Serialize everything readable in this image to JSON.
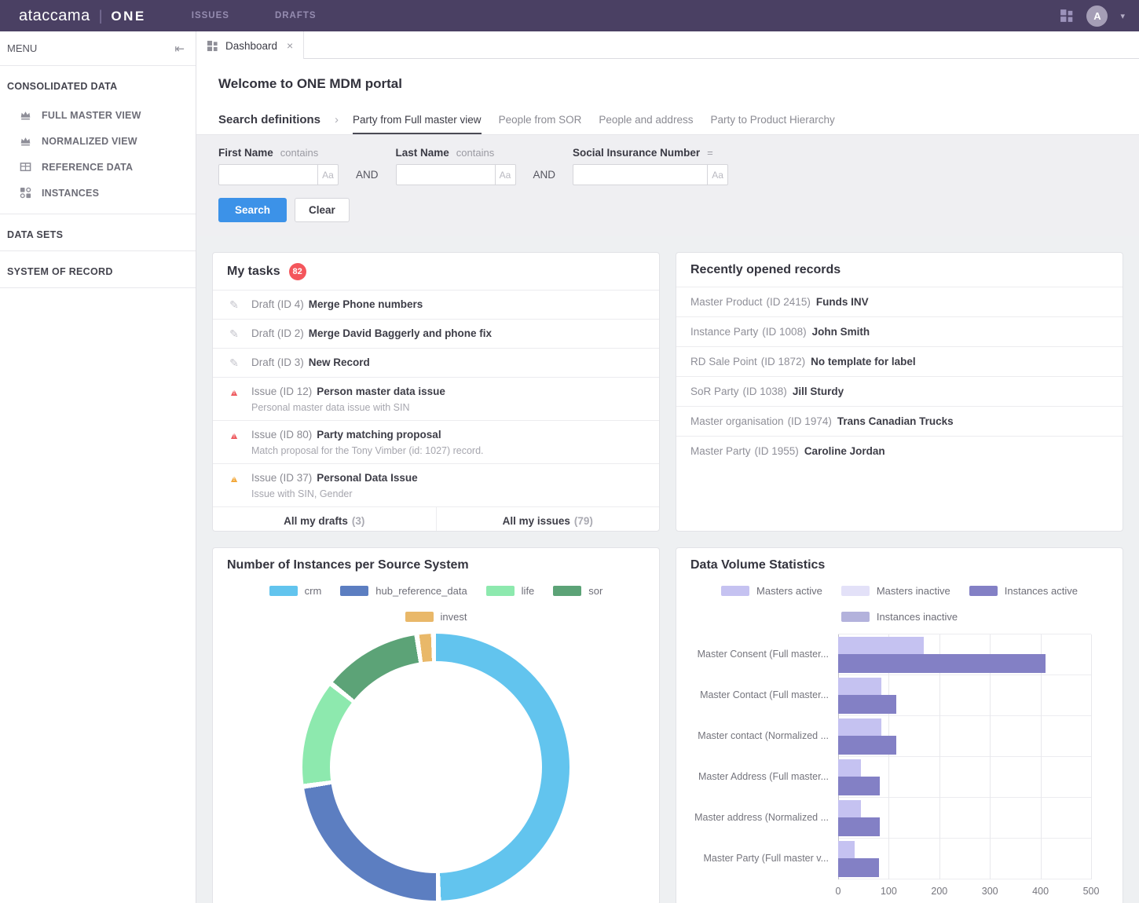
{
  "topbar": {
    "brand": "ataccama",
    "brand_suffix": "ONE",
    "nav": [
      {
        "label": "ISSUES"
      },
      {
        "label": "DRAFTS"
      }
    ],
    "avatar_initial": "A"
  },
  "sidebar": {
    "menu_label": "MENU",
    "sections": [
      {
        "label": "CONSOLIDATED DATA",
        "items": [
          {
            "label": "FULL MASTER VIEW",
            "icon": "crown-icon"
          },
          {
            "label": "NORMALIZED VIEW",
            "icon": "crown-icon"
          },
          {
            "label": "REFERENCE DATA",
            "icon": "table-icon"
          },
          {
            "label": "INSTANCES",
            "icon": "instances-icon"
          }
        ]
      },
      {
        "label": "DATA SETS",
        "items": []
      },
      {
        "label": "SYSTEM OF RECORD",
        "items": []
      }
    ]
  },
  "tabbar": {
    "active_tab": "Dashboard"
  },
  "header": {
    "welcome": "Welcome to ONE MDM portal"
  },
  "search": {
    "title": "Search definitions",
    "tabs": [
      {
        "label": "Party from Full master view",
        "active": true
      },
      {
        "label": "People from SOR",
        "active": false
      },
      {
        "label": "People and address",
        "active": false
      },
      {
        "label": "Party to Product Hierarchy",
        "active": false
      }
    ],
    "connector": "AND",
    "fields": [
      {
        "label": "First Name",
        "operator": "contains",
        "value": "",
        "case_toggle": "Aa"
      },
      {
        "label": "Last Name",
        "operator": "contains",
        "value": "",
        "case_toggle": "Aa"
      },
      {
        "label": "Social Insurance Number",
        "operator": "=",
        "value": "",
        "case_toggle": "Aa"
      }
    ],
    "search_label": "Search",
    "clear_label": "Clear"
  },
  "my_tasks": {
    "title": "My tasks",
    "badge": "82",
    "items": [
      {
        "type": "draft",
        "label": "Draft (ID 4)",
        "title": "Merge Phone numbers",
        "subtitle": ""
      },
      {
        "type": "draft",
        "label": "Draft (ID 2)",
        "title": "Merge David Baggerly and phone fix",
        "subtitle": ""
      },
      {
        "type": "draft",
        "label": "Draft (ID 3)",
        "title": "New Record",
        "subtitle": ""
      },
      {
        "type": "issue-red",
        "label": "Issue (ID 12)",
        "title": "Person master data issue",
        "subtitle": "Personal master data issue with SIN"
      },
      {
        "type": "issue-red",
        "label": "Issue (ID 80)",
        "title": "Party matching proposal",
        "subtitle": "Match proposal for the Tony Vimber (id: 1027) record."
      },
      {
        "type": "issue-orange",
        "label": "Issue (ID 37)",
        "title": "Personal Data Issue",
        "subtitle": "Issue with SIN, Gender"
      }
    ],
    "footer": [
      {
        "label": "All my drafts",
        "count": "(3)"
      },
      {
        "label": "All my issues",
        "count": "(79)"
      }
    ]
  },
  "recent_records": {
    "title": "Recently opened records",
    "items": [
      {
        "label": "Master Product",
        "id": "(ID 2415)",
        "name": "Funds INV"
      },
      {
        "label": "Instance Party",
        "id": "(ID 1008)",
        "name": "John Smith"
      },
      {
        "label": "RD Sale Point",
        "id": "(ID 1872)",
        "name": "No template for label"
      },
      {
        "label": "SoR Party",
        "id": "(ID 1038)",
        "name": "Jill Sturdy"
      },
      {
        "label": "Master organisation",
        "id": "(ID 1974)",
        "name": "Trans Canadian Trucks"
      },
      {
        "label": "Master Party",
        "id": "(ID 1955)",
        "name": "Caroline Jordan"
      }
    ]
  },
  "chart_data": [
    {
      "type": "pie",
      "donut": true,
      "title": "Number of Instances per Source System",
      "unit": "% (estimated from arc angles)",
      "legend_position": "top",
      "legend_break_after": 4,
      "series": [
        {
          "name": "crm",
          "value": 50,
          "color": "#62c4ee"
        },
        {
          "name": "hub_reference_data",
          "value": 23,
          "color": "#5c7ec1"
        },
        {
          "name": "life",
          "value": 13,
          "color": "#8de9ae"
        },
        {
          "name": "sor",
          "value": 12,
          "color": "#5ca377"
        },
        {
          "name": "invest",
          "value": 2,
          "color": "#e9b869"
        }
      ]
    },
    {
      "type": "bar",
      "orientation": "horizontal",
      "title": "Data Volume Statistics",
      "legend_position": "top",
      "legend_break_after": 3,
      "categories": [
        "Master Consent (Full master...",
        "Master Contact (Full master...",
        "Master contact (Normalized ...",
        "Master Address (Full master...",
        "Master address (Normalized ...",
        "Master Party (Full master v..."
      ],
      "series": [
        {
          "name": "Masters active",
          "color": "#c5c2f1",
          "values": [
            170,
            85,
            85,
            45,
            45,
            33
          ]
        },
        {
          "name": "Masters inactive",
          "color": "#e3e1f8",
          "values": [
            0,
            0,
            0,
            0,
            0,
            0
          ]
        },
        {
          "name": "Instances active",
          "color": "#8380c5",
          "values": [
            410,
            115,
            115,
            82,
            82,
            80
          ]
        },
        {
          "name": "Instances inactive",
          "color": "#b3b2dc",
          "values": [
            0,
            0,
            0,
            0,
            0,
            0
          ]
        }
      ],
      "xlim": [
        0,
        500
      ],
      "xticks": [
        0,
        100,
        200,
        300,
        400,
        500
      ],
      "grid": true
    }
  ]
}
